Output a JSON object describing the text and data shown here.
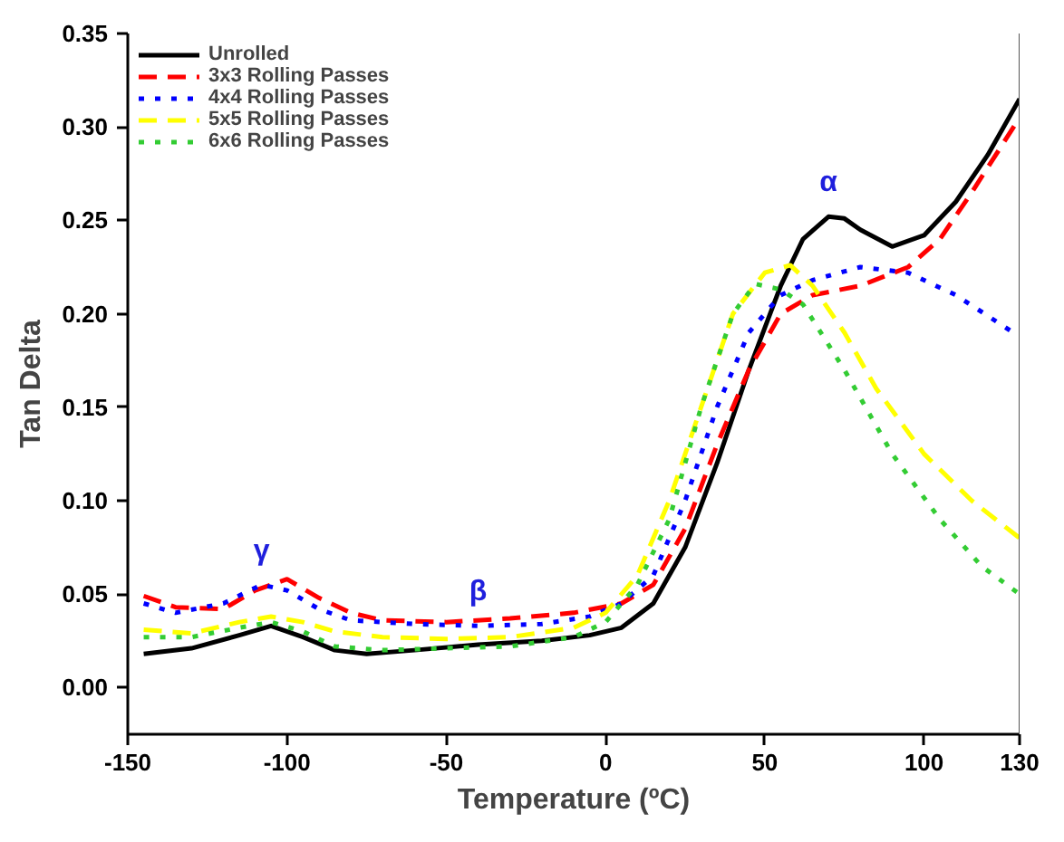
{
  "chart_data": {
    "type": "line",
    "xlabel": "Temperature (ºC)",
    "ylabel": "Tan Delta",
    "xlim": [
      -150,
      130
    ],
    "ylim": [
      -0.025,
      0.35
    ],
    "xticks": [
      -150,
      -100,
      -50,
      0,
      50,
      100,
      130
    ],
    "yticks": [
      {
        "value": 0,
        "label": "0.00"
      },
      {
        "value": 0.05,
        "label": "0.05"
      },
      {
        "value": 0.1,
        "label": "0.10"
      },
      {
        "value": 0.15,
        "label": "0.15"
      },
      {
        "value": 0.2,
        "label": "0.20"
      },
      {
        "value": 0.25,
        "label": "0.25"
      },
      {
        "value": 0.3,
        "label": "0.30"
      },
      {
        "value": 0.35,
        "label": "0.35"
      }
    ],
    "grid": false,
    "legend": "top left",
    "marker": "none",
    "annotations": [
      {
        "text": "γ",
        "x": -108,
        "y": 0.055
      },
      {
        "text": "β",
        "x": -40,
        "y": 0.033
      },
      {
        "text": "α",
        "x": 70,
        "y": 0.252
      }
    ],
    "series": [
      {
        "name": "Unrolled",
        "color": "#000000",
        "line_style": "solid",
        "x": [
          -145,
          -130,
          -115,
          -105,
          -95,
          -85,
          -75,
          -60,
          -40,
          -20,
          -5,
          5,
          15,
          25,
          35,
          45,
          55,
          62,
          70,
          75,
          80,
          90,
          100,
          110,
          120,
          130
        ],
        "values": [
          0.018,
          0.021,
          0.028,
          0.033,
          0.027,
          0.02,
          0.018,
          0.02,
          0.023,
          0.025,
          0.028,
          0.032,
          0.045,
          0.075,
          0.12,
          0.17,
          0.215,
          0.24,
          0.252,
          0.251,
          0.245,
          0.236,
          0.242,
          0.26,
          0.285,
          0.315
        ]
      },
      {
        "name": "3x3 Rolling Passes",
        "color": "#ff0000",
        "line_style": "dashed",
        "x": [
          -145,
          -135,
          -120,
          -110,
          -100,
          -90,
          -80,
          -70,
          -50,
          -30,
          -10,
          5,
          15,
          25,
          35,
          45,
          55,
          65,
          80,
          95,
          105,
          115,
          130
        ],
        "values": [
          0.049,
          0.043,
          0.042,
          0.052,
          0.058,
          0.048,
          0.04,
          0.036,
          0.035,
          0.037,
          0.04,
          0.045,
          0.055,
          0.085,
          0.13,
          0.17,
          0.2,
          0.21,
          0.215,
          0.225,
          0.24,
          0.265,
          0.305
        ]
      },
      {
        "name": "4x4 Rolling Passes",
        "color": "#0000ff",
        "line_style": "dotted",
        "x": [
          -145,
          -135,
          -120,
          -108,
          -100,
          -90,
          -80,
          -60,
          -40,
          -20,
          -5,
          5,
          15,
          25,
          35,
          45,
          55,
          65,
          80,
          95,
          110,
          128
        ],
        "values": [
          0.045,
          0.04,
          0.045,
          0.055,
          0.052,
          0.042,
          0.036,
          0.034,
          0.033,
          0.034,
          0.038,
          0.045,
          0.06,
          0.1,
          0.15,
          0.19,
          0.21,
          0.218,
          0.225,
          0.222,
          0.21,
          0.19
        ]
      },
      {
        "name": "5x5 Rolling Passes",
        "color": "#ffff00",
        "line_style": "dashed",
        "x": [
          -145,
          -130,
          -115,
          -105,
          -95,
          -85,
          -70,
          -50,
          -30,
          -10,
          0,
          10,
          20,
          30,
          40,
          50,
          58,
          65,
          75,
          85,
          100,
          115,
          130
        ],
        "values": [
          0.031,
          0.029,
          0.035,
          0.038,
          0.035,
          0.03,
          0.027,
          0.026,
          0.027,
          0.032,
          0.04,
          0.06,
          0.1,
          0.15,
          0.2,
          0.222,
          0.226,
          0.215,
          0.19,
          0.16,
          0.125,
          0.1,
          0.08
        ]
      },
      {
        "name": "6x6 Rolling Passes",
        "color": "#33cc33",
        "line_style": "dotted",
        "x": [
          -145,
          -130,
          -115,
          -105,
          -95,
          -85,
          -70,
          -50,
          -30,
          -10,
          0,
          10,
          20,
          30,
          40,
          47,
          55,
          62,
          75,
          90,
          105,
          118,
          130
        ],
        "values": [
          0.027,
          0.027,
          0.032,
          0.035,
          0.03,
          0.022,
          0.02,
          0.021,
          0.022,
          0.027,
          0.035,
          0.055,
          0.09,
          0.15,
          0.2,
          0.216,
          0.213,
          0.205,
          0.17,
          0.125,
          0.09,
          0.065,
          0.05
        ]
      }
    ]
  }
}
